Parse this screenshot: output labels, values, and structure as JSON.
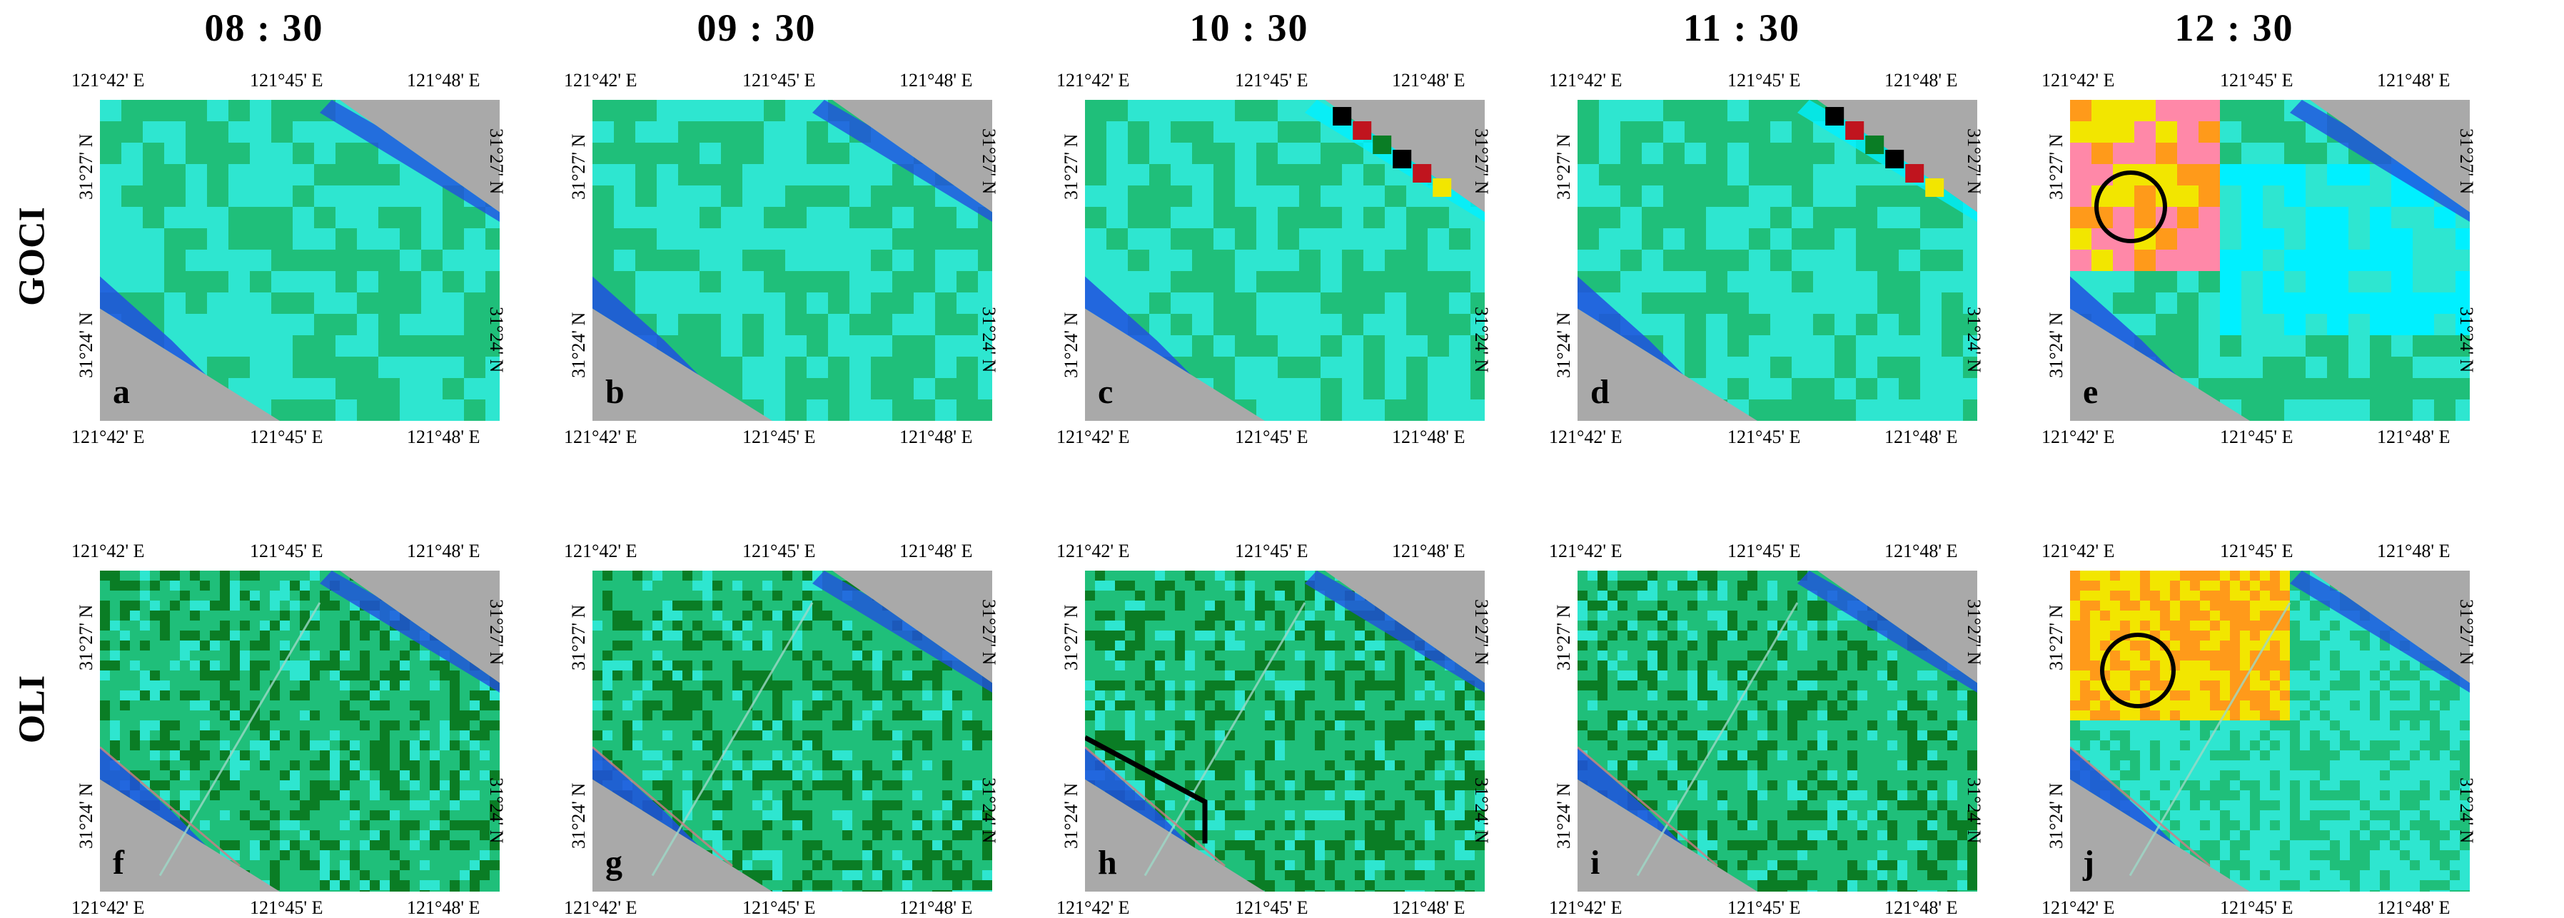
{
  "times": [
    "08 : 30",
    "09 : 30",
    "10 : 30",
    "11 : 30",
    "12 : 30"
  ],
  "row_labels": [
    "GOCI",
    "OLI"
  ],
  "lon_labels": [
    "121°42' E",
    "121°45' E",
    "121°48' E"
  ],
  "lat_labels": [
    "31°27' N",
    "31°24' N"
  ],
  "panel_letters_goci": [
    "a",
    "b",
    "c",
    "d",
    "e"
  ],
  "panel_letters_oli": [
    "f",
    "g",
    "h",
    "i",
    "j"
  ],
  "colors": {
    "land": "#a9a9a9",
    "cyan": "#2ee6d0",
    "green": "#1fbf7a",
    "dark_green": "#0a7d25",
    "blue": "#2050e0",
    "light_cyan": "#00f0ff",
    "yellow": "#f2e600",
    "orange": "#ff9a1a",
    "pink": "#ff88a8",
    "red": "#c0141e",
    "black": "#000000"
  },
  "highlight": {
    "panel_goci": "e",
    "panel_oli": "j",
    "shape": "circle"
  }
}
